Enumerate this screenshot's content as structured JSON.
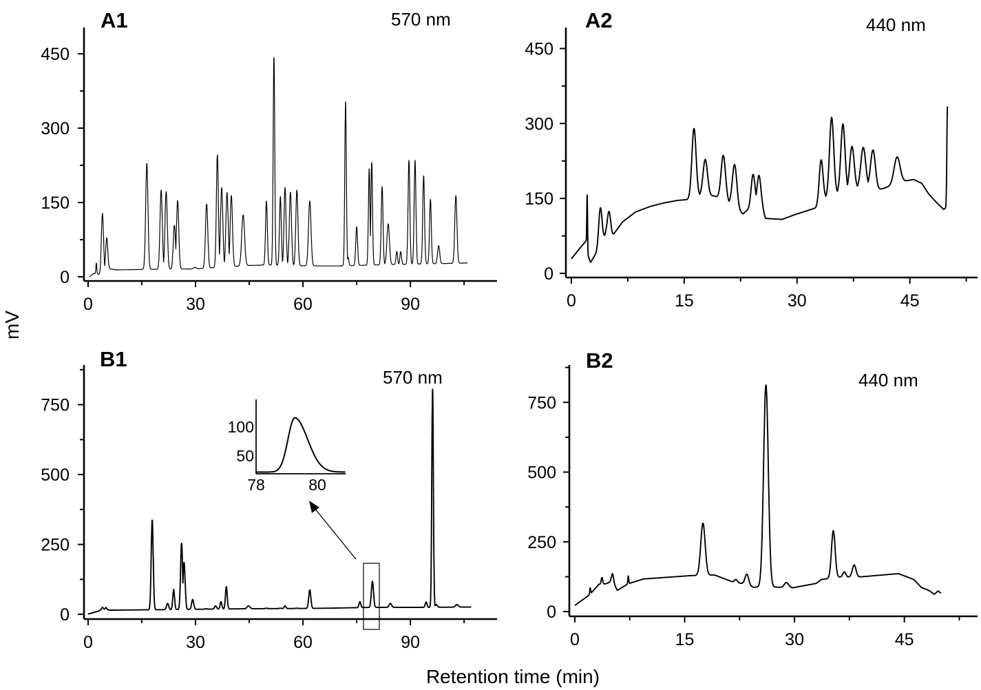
{
  "figure": {
    "ylabel": "mV",
    "xlabel": "Retention time (min)"
  },
  "chart_data": [
    {
      "panel": "A1",
      "type": "line",
      "wavelength": "570 nm",
      "xlim": [
        -1.15,
        114.2
      ],
      "ylim": [
        -8.3,
        503
      ],
      "xticks": [
        0,
        30,
        60,
        90
      ],
      "xminor": 15,
      "yticks": [
        0,
        150,
        300,
        450
      ],
      "yminor": 75,
      "default_sigma": 0.32,
      "baseline": [
        [
          0.4,
          0
        ],
        [
          1.5,
          7
        ],
        [
          2.6,
          6
        ],
        [
          3.2,
          4
        ],
        [
          6,
          16
        ],
        [
          8,
          14
        ],
        [
          16,
          15
        ],
        [
          30,
          16
        ],
        [
          34,
          18
        ],
        [
          45,
          23
        ],
        [
          50,
          24
        ],
        [
          62,
          22
        ],
        [
          70,
          22
        ],
        [
          80,
          24
        ],
        [
          100,
          27
        ],
        [
          106,
          28
        ]
      ],
      "peaks": [
        [
          2.3,
          28,
          0.12
        ],
        [
          4.0,
          128,
          0.3
        ],
        [
          5.2,
          79,
          0.3
        ],
        [
          16.4,
          229
        ],
        [
          20.4,
          175
        ],
        [
          21.8,
          172
        ],
        [
          24.1,
          104
        ],
        [
          25.0,
          154
        ],
        [
          29.8,
          19,
          0.4
        ],
        [
          33.1,
          147
        ],
        [
          36.1,
          246,
          0.28
        ],
        [
          37.3,
          180
        ],
        [
          38.8,
          170
        ],
        [
          40.0,
          164
        ],
        [
          43.3,
          125,
          0.4
        ],
        [
          49.8,
          153,
          0.25
        ],
        [
          51.9,
          443,
          0.22
        ],
        [
          53.7,
          162,
          0.25
        ],
        [
          55.0,
          180,
          0.28
        ],
        [
          56.5,
          171,
          0.3
        ],
        [
          58.3,
          175,
          0.3
        ],
        [
          61.9,
          153,
          0.35
        ],
        [
          67.7,
          22,
          0.6
        ],
        [
          71.9,
          353,
          0.22
        ],
        [
          72.6,
          40,
          0.2
        ],
        [
          75.0,
          101,
          0.25
        ],
        [
          78.5,
          218,
          0.22
        ],
        [
          79.2,
          231,
          0.22
        ],
        [
          82.1,
          182,
          0.25
        ],
        [
          83.8,
          107,
          0.35
        ],
        [
          86.2,
          51,
          0.22
        ],
        [
          87.3,
          51,
          0.22
        ],
        [
          89.6,
          235,
          0.25
        ],
        [
          91.3,
          235,
          0.25
        ],
        [
          93.7,
          204,
          0.25
        ],
        [
          95.6,
          156,
          0.25
        ],
        [
          97.9,
          63,
          0.3
        ],
        [
          102.7,
          164,
          0.3
        ]
      ]
    },
    {
      "panel": "A2",
      "type": "line",
      "wavelength": "440 nm",
      "xlim": [
        -0.73,
        54.0
      ],
      "ylim": [
        -8.3,
        492
      ],
      "xticks": [
        0,
        15,
        30,
        45
      ],
      "xminor": 7.5,
      "yticks": [
        0,
        150,
        300,
        450
      ],
      "yminor": 75,
      "default_sigma": 0.3,
      "baseline": [
        [
          0,
          29
        ],
        [
          1.0,
          48
        ],
        [
          1.95,
          65
        ],
        [
          2.1,
          40
        ],
        [
          2.55,
          22
        ],
        [
          3.45,
          44
        ],
        [
          4.6,
          79
        ],
        [
          5.5,
          76
        ],
        [
          6.8,
          103
        ],
        [
          8.55,
          123
        ],
        [
          10.5,
          134
        ],
        [
          12.3,
          141
        ],
        [
          14.1,
          146
        ],
        [
          15.7,
          148
        ],
        [
          17.0,
          155
        ],
        [
          19.0,
          155
        ],
        [
          21.0,
          140
        ],
        [
          22.8,
          119
        ],
        [
          24.5,
          140
        ],
        [
          25.4,
          130
        ],
        [
          25.8,
          110
        ],
        [
          28,
          108
        ],
        [
          29.8,
          118
        ],
        [
          32.5,
          131
        ],
        [
          33.7,
          150
        ],
        [
          35.3,
          160
        ],
        [
          37,
          165
        ],
        [
          39,
          175
        ],
        [
          40.8,
          167
        ],
        [
          42.3,
          174
        ],
        [
          44.5,
          185
        ],
        [
          45.5,
          188
        ],
        [
          46.6,
          180
        ],
        [
          47.5,
          159
        ],
        [
          48.6,
          141
        ],
        [
          49.5,
          128
        ],
        [
          49.7,
          130
        ]
      ],
      "peaks": [
        [
          2.1,
          157,
          0.05
        ],
        [
          3.85,
          131,
          0.22
        ],
        [
          5.0,
          124,
          0.22
        ],
        [
          16.3,
          290,
          0.28
        ],
        [
          17.8,
          228
        ],
        [
          20.2,
          236
        ],
        [
          21.7,
          218
        ],
        [
          24.15,
          198,
          0.25
        ],
        [
          24.95,
          196,
          0.25
        ],
        [
          33.2,
          227,
          0.25
        ],
        [
          34.6,
          312,
          0.28
        ],
        [
          36.1,
          299,
          0.28
        ],
        [
          37.3,
          254
        ],
        [
          38.8,
          252,
          0.32
        ],
        [
          40.1,
          247,
          0.32
        ],
        [
          43.3,
          233,
          0.4
        ],
        [
          50.0,
          334,
          0.08
        ]
      ]
    },
    {
      "panel": "B1",
      "type": "line",
      "wavelength": "570 nm",
      "xlim": [
        -1.15,
        114.2
      ],
      "ylim": [
        -17,
        892
      ],
      "xticks": [
        0,
        30,
        60,
        90
      ],
      "xminor": 15,
      "yticks": [
        0,
        250,
        500,
        750
      ],
      "yminor": 125,
      "default_sigma": 0.3,
      "baseline": [
        [
          0,
          1
        ],
        [
          3,
          12
        ],
        [
          4,
          20
        ],
        [
          6,
          15
        ],
        [
          16.3,
          16
        ],
        [
          30,
          18
        ],
        [
          45,
          20
        ],
        [
          60,
          21
        ],
        [
          67.4,
          22
        ],
        [
          80,
          25
        ],
        [
          94,
          25
        ],
        [
          107,
          26
        ]
      ],
      "peaks": [
        [
          4.0,
          25,
          0.2
        ],
        [
          5.0,
          24,
          0.2
        ],
        [
          17.9,
          337,
          0.28
        ],
        [
          22.2,
          39
        ],
        [
          23.9,
          89,
          0.25
        ],
        [
          26.1,
          254,
          0.28
        ],
        [
          26.8,
          185,
          0.3
        ],
        [
          29.2,
          53,
          0.3
        ],
        [
          33,
          20
        ],
        [
          35.6,
          30
        ],
        [
          37.1,
          45,
          0.25
        ],
        [
          38.6,
          99,
          0.25
        ],
        [
          44.8,
          30,
          0.4
        ],
        [
          49.8,
          22
        ],
        [
          53.7,
          22
        ],
        [
          55.0,
          30,
          0.25
        ],
        [
          58.3,
          22
        ],
        [
          61.9,
          87,
          0.3
        ],
        [
          75.9,
          45,
          0.25
        ],
        [
          79.4,
          118,
          0.3
        ],
        [
          84.4,
          39,
          0.35
        ],
        [
          94.4,
          44,
          0.25
        ],
        [
          96.2,
          805,
          0.22
        ],
        [
          97.2,
          35,
          0.3
        ],
        [
          103,
          35,
          0.4
        ]
      ],
      "inset": {
        "xlim": [
          78,
          80.92
        ],
        "ylim": [
          19,
          148
        ],
        "xticks": [
          78,
          80
        ],
        "yticks": [
          50,
          100
        ],
        "baseline": 22,
        "peak": {
          "t": 79.26,
          "apex": 116,
          "sigma_left": 0.22,
          "sigma_right": 0.42
        }
      }
    },
    {
      "panel": "B2",
      "type": "line",
      "wavelength": "440 nm",
      "xlim": [
        -0.75,
        55.0
      ],
      "ylim": [
        -17,
        884
      ],
      "xticks": [
        0,
        15,
        30,
        45
      ],
      "xminor": 7.5,
      "yticks": [
        0,
        250,
        500,
        750
      ],
      "yminor": 125,
      "default_sigma": 0.3,
      "baseline": [
        [
          0,
          22
        ],
        [
          2.0,
          60
        ],
        [
          3.3,
          98
        ],
        [
          4.3,
          100
        ],
        [
          5.15,
          110
        ],
        [
          5.8,
          76
        ],
        [
          7.3,
          100
        ],
        [
          9.4,
          117
        ],
        [
          15.9,
          129
        ],
        [
          19.1,
          131
        ],
        [
          21.6,
          106
        ],
        [
          23.0,
          100
        ],
        [
          24.4,
          87
        ],
        [
          26.1,
          90
        ],
        [
          27.9,
          87
        ],
        [
          29.7,
          85
        ],
        [
          32.95,
          101
        ],
        [
          33.7,
          115
        ],
        [
          36.3,
          124
        ],
        [
          38.8,
          124
        ],
        [
          44.2,
          136
        ],
        [
          46.3,
          115
        ],
        [
          47.3,
          87
        ],
        [
          48.4,
          75
        ],
        [
          49.1,
          62
        ],
        [
          49.6,
          74
        ],
        [
          50.0,
          66
        ]
      ],
      "peaks": [
        [
          2.1,
          85,
          0.06
        ],
        [
          3.7,
          122,
          0.1
        ],
        [
          5.15,
          136,
          0.15
        ],
        [
          7.3,
          128,
          0.06
        ],
        [
          17.5,
          317,
          0.3
        ],
        [
          22.0,
          115,
          0.2
        ],
        [
          23.5,
          134,
          0.25
        ],
        [
          26.1,
          812,
          0.32
        ],
        [
          28.9,
          104,
          0.3
        ],
        [
          35.3,
          290,
          0.25
        ],
        [
          36.8,
          142,
          0.2
        ],
        [
          38.15,
          167,
          0.25
        ]
      ]
    }
  ]
}
